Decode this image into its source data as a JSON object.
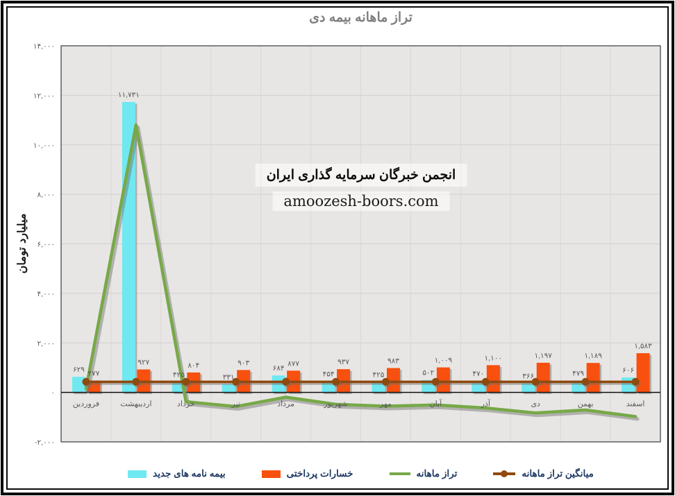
{
  "watermark": {
    "line1": "انجمن خبرگان سرمایه گذاری ایران",
    "line2": "amoozesh-boors.com"
  },
  "y_axis": {
    "tick_values": [
      14000,
      12000,
      10000,
      8000,
      6000,
      4000,
      2000,
      0,
      -2000
    ],
    "tick_labels": [
      "۱۴,۰۰۰",
      "۱۲,۰۰۰",
      "۱۰,۰۰۰",
      "۸,۰۰۰",
      "۶,۰۰۰",
      "۴,۰۰۰",
      "۲,۰۰۰",
      "۰",
      "-۲,۰۰۰"
    ]
  },
  "chart_data": {
    "type": "bar",
    "subtype": "combo-bar-line",
    "title": "تراز ماهانه بیمه دی",
    "xlabel": "",
    "ylabel": "میلیارد تومان",
    "ylim": [
      -2000,
      14000
    ],
    "y_tick_step": 2000,
    "grid": "on",
    "legend_position": "bottom",
    "categories": [
      "فروردین",
      "اردیبهشت",
      "خرداد",
      "تیر",
      "مرداد",
      "شهریور",
      "مهر",
      "آبان",
      "آذر",
      "دی",
      "بهمن",
      "اسفند"
    ],
    "series": [
      {
        "name": "بیمه نامه های جدید",
        "type": "bar",
        "color": "#70e8f2",
        "values": [
          629,
          11731,
          425,
          331,
          684,
          454,
          425,
          502,
          470,
          366,
          479,
          606
        ],
        "labels": [
          "۶۲۹",
          "۱۱,۷۳۱",
          "۴۲۵",
          "۳۳۱",
          "۶۸۴",
          "۴۵۴",
          "۴۲۵",
          "۵۰۲",
          "۴۷۰",
          "۳۶۶",
          "۴۷۹",
          "۶۰۶"
        ]
      },
      {
        "name": "خسارات پرداختی",
        "type": "bar",
        "color": "#f8500e",
        "values": [
          477,
          927,
          804,
          903,
          877,
          937,
          983,
          1009,
          1100,
          1197,
          1189,
          1583
        ],
        "labels": [
          "۴۷۷",
          "۹۲۷",
          "۸۰۴",
          "۹۰۳",
          "۸۷۷",
          "۹۳۷",
          "۹۸۳",
          "۱,۰۰۹",
          "۱,۱۰۰",
          "۱,۱۹۷",
          "۱,۱۸۹",
          "۱,۵۸۳"
        ]
      },
      {
        "name": "تراز ماهانه",
        "type": "line",
        "color": "#77a947",
        "values": [
          152,
          10804,
          -379,
          -572,
          -193,
          -483,
          -558,
          -507,
          -630,
          -831,
          -710,
          -977
        ]
      },
      {
        "name": "میانگین تراز ماهانه",
        "type": "line-marker",
        "color": "#8f4a0e",
        "value": 426
      }
    ]
  },
  "colors": {
    "plot_background": "#e8e6e5",
    "gridline": "#d2cfce",
    "column_separator": "#d9d6d5",
    "plot_border": "#3a3a3a",
    "zero_axis": "#0f0f0f",
    "tick_text": "#595959",
    "title_text": "#7f7f7f",
    "legend_text": "#1f3864",
    "shadow": "rgba(110,110,108,0.45)"
  }
}
